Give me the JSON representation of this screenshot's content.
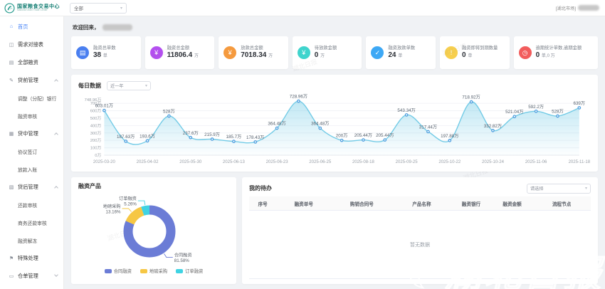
{
  "theme": {
    "accent": "#4a86f7",
    "teal_brand": "#157f74"
  },
  "header": {
    "brand_title": "国家粮食交易中心",
    "brand_subtitle": "National Grain Trade Center",
    "scope_select_value": "全部",
    "user_market_tag": "[湖北市场]"
  },
  "sidebar": {
    "items": [
      {
        "label": "首页",
        "icon": "home-icon",
        "glyph": "⌂",
        "active": true
      },
      {
        "label": "需求对接表",
        "icon": "demand-table-icon",
        "glyph": "◫"
      },
      {
        "label": "全部融资",
        "icon": "all-financing-icon",
        "glyph": "▤"
      },
      {
        "label": "贷前管理",
        "icon": "pre-loan-icon",
        "glyph": "✎",
        "expanded": true,
        "children": [
          "调整（分配）银行",
          "融资审核"
        ]
      },
      {
        "label": "贷中管理",
        "icon": "mid-loan-icon",
        "glyph": "▦",
        "expanded": true,
        "children": [
          "协议签订",
          "放款入账"
        ]
      },
      {
        "label": "贷后管理",
        "icon": "post-loan-icon",
        "glyph": "▧",
        "expanded": true,
        "children": [
          "还款审核",
          "商务还款审核",
          "融资解冻"
        ]
      },
      {
        "label": "特殊处理",
        "icon": "special-handling-icon",
        "glyph": "⚑"
      },
      {
        "label": "仓单管理",
        "icon": "warehouse-receipt-icon",
        "glyph": "▭",
        "expanded": false,
        "children": []
      }
    ]
  },
  "welcome": {
    "prefix": "欢迎回来，"
  },
  "stats": [
    {
      "label": "融资总单数",
      "value": "38",
      "unit": "单",
      "icon": "document-icon",
      "glyph": "▤",
      "color": "#4a7ff0"
    },
    {
      "label": "融资总金额",
      "value": "11806.4",
      "unit": "万",
      "icon": "money-icon",
      "glyph": "¥",
      "color": "#b44ff0"
    },
    {
      "label": "放款总金额",
      "value": "7018.34",
      "unit": "万",
      "icon": "coin-icon",
      "glyph": "¥",
      "color": "#f59a3e"
    },
    {
      "label": "待放款金额",
      "value": "0",
      "unit": "万",
      "icon": "wallet-icon",
      "glyph": "¥",
      "color": "#3fd4cd"
    },
    {
      "label": "融资放款单数",
      "value": "24",
      "unit": "单",
      "icon": "check-doc-icon",
      "glyph": "✓",
      "color": "#3da8f5"
    },
    {
      "label": "融资即将到期数量",
      "value": "0",
      "unit": "单",
      "icon": "alert-icon",
      "glyph": "!",
      "color": "#f7cf4e"
    },
    {
      "label": "逾期统计单数,逾期金额",
      "value": "0",
      "unit": "单,0 万",
      "icon": "clock-icon",
      "glyph": "◷",
      "color": "#f25c5c"
    }
  ],
  "daily_panel": {
    "title": "每日数据",
    "range_select_value": "近一年"
  },
  "products_panel": {
    "title": "融资产品"
  },
  "todo_panel": {
    "title": "我的待办",
    "select_placeholder": "请选择",
    "columns": [
      "序号",
      "融资单号",
      "购销合同号",
      "产品名称",
      "融资银行",
      "融资金额",
      "流程节点"
    ],
    "empty_text": "暂无数据"
  },
  "watermark": {
    "text": "湖北日报"
  },
  "chart_data": [
    {
      "type": "line",
      "title": "每日数据",
      "range": "近一年",
      "values": [
        603.01,
        187.63,
        193.6,
        528,
        237.6,
        215.9,
        185.7,
        178.43,
        364.48,
        728.96,
        364.48,
        200,
        205.44,
        205.44,
        543.34,
        317.44,
        197.88,
        718.92,
        332.82,
        521.04,
        592.2,
        528,
        639
      ],
      "point_labels": [
        "603.01万",
        "187.63万",
        "193.6万",
        "528万",
        "237.6万",
        "215.9万",
        "185.7万",
        "178.43万",
        "364.48万",
        "728.96万",
        "364.48万",
        "200万",
        "205.44万",
        "205.44万",
        "543.34万",
        "317.44万",
        "197.88万",
        "718.92万",
        "332.82万",
        "521.04万",
        "592.2万",
        "528万",
        "639万"
      ],
      "x_tick_labels": [
        "2025-03-20",
        "2025-04-02",
        "2025-05-30",
        "2025-06-13",
        "2025-06-23",
        "2025-06-25",
        "2025-08-18",
        "2025-09-25",
        "2025-10-22",
        "2025-10-24",
        "2025-11-06",
        "2025-11-18"
      ],
      "x_tick_every": 2,
      "y_ticks": [
        0,
        100,
        200,
        300,
        400,
        500,
        600,
        700
      ],
      "y_tick_suffix": "万",
      "y_max_label": "748.96万",
      "ylim": [
        0,
        748.96
      ],
      "grid": true,
      "line_color": "#73cbe6",
      "marker_color": "#4f9fdf",
      "area_color": "115,203,230"
    },
    {
      "type": "pie",
      "title": "融资产品",
      "slices": [
        {
          "label": "合同融资",
          "pct": 81.58,
          "pct_label": "81.58%",
          "color": "#6b7cd6"
        },
        {
          "label": "地磅采购",
          "pct": 13.16,
          "pct_label": "13.16%",
          "color": "#f6c744"
        },
        {
          "label": "订单融资",
          "pct": 5.26,
          "pct_label": "5.26%",
          "color": "#3fd3e3"
        }
      ],
      "legend_position": "bottom",
      "donut": true
    }
  ]
}
